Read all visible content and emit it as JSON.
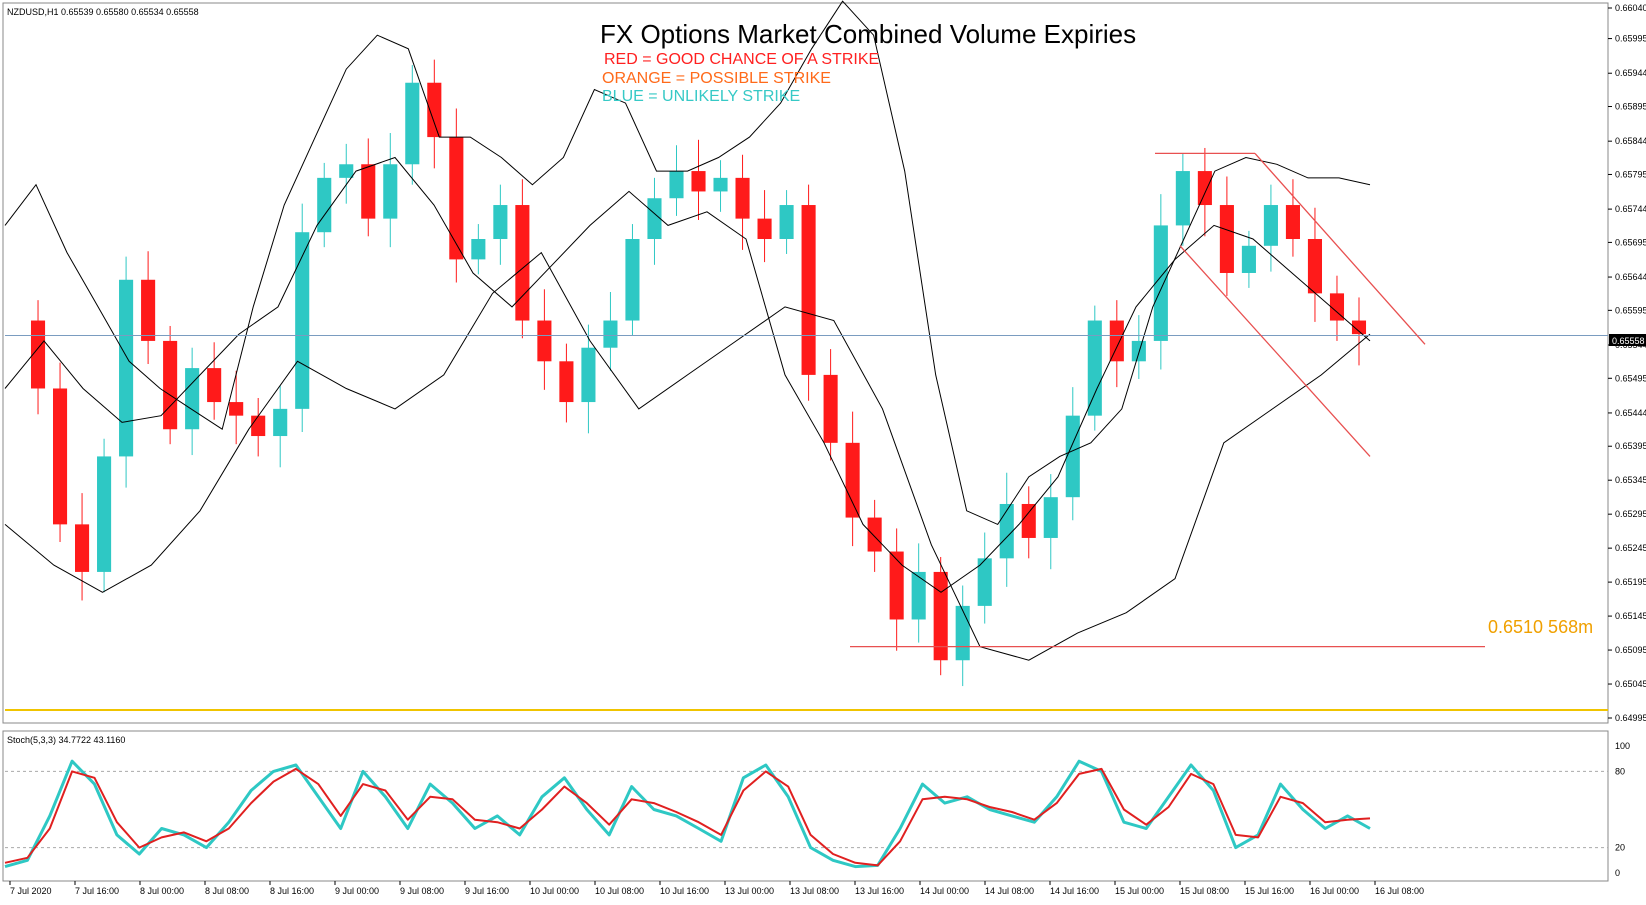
{
  "header": {
    "symbol_info": "NZDUSD,H1  0.65539 0.65580 0.65534 0.65558",
    "title": "FX Options Market Combined Volume Expiries",
    "legend": [
      {
        "text": "RED = GOOD CHANCE OF A STRIKE",
        "color": "#ff2020"
      },
      {
        "text": "ORANGE = POSSIBLE STRIKE",
        "color": "#ff6a1a"
      },
      {
        "text": "BLUE = UNLIKELY STRIKE",
        "color": "#36c9c6"
      }
    ]
  },
  "annotation": {
    "text": "0.6510 568m",
    "color": "#f0a000"
  },
  "price_label": "0.65558",
  "stoch_label": "Stoch(5,3,3) 34.7722 43.1160",
  "colors": {
    "bull": "#2ec8c4",
    "bear": "#ff1a1a",
    "band": "#000000",
    "line": "#e02020",
    "expiry": "#f0c400"
  },
  "chart_data": [
    {
      "type": "candlestick",
      "symbol": "NZDUSD",
      "timeframe": "H1",
      "ylim": [
        0.64995,
        0.6604
      ],
      "y_ticks": [
        "0.66040",
        "0.65995",
        "0.65944",
        "0.65895",
        "0.65844",
        "0.65795",
        "0.65744",
        "0.65695",
        "0.65644",
        "0.65595",
        "0.65544",
        "0.65495",
        "0.65444",
        "0.65395",
        "0.65345",
        "0.65295",
        "0.65245",
        "0.65195",
        "0.65145",
        "0.65095",
        "0.65045",
        "0.64995"
      ],
      "x_ticks": [
        "7 Jul 2020",
        "7 Jul 16:00",
        "8 Jul 00:00",
        "8 Jul 08:00",
        "8 Jul 16:00",
        "9 Jul 00:00",
        "9 Jul 08:00",
        "9 Jul 16:00",
        "10 Jul 00:00",
        "10 Jul 08:00",
        "10 Jul 16:00",
        "13 Jul 00:00",
        "13 Jul 08:00",
        "13 Jul 16:00",
        "14 Jul 00:00",
        "14 Jul 08:00",
        "14 Jul 16:00",
        "15 Jul 00:00",
        "15 Jul 08:00",
        "15 Jul 16:00",
        "16 Jul 00:00",
        "16 Jul 08:00"
      ],
      "current_price": 0.65558,
      "close_path": [
        0.6558,
        0.6548,
        0.6528,
        0.6521,
        0.6538,
        0.6564,
        0.6555,
        0.6542,
        0.6551,
        0.6546,
        0.6544,
        0.6541,
        0.6545,
        0.6571,
        0.6579,
        0.6581,
        0.6573,
        0.6581,
        0.6593,
        0.6585,
        0.6567,
        0.657,
        0.6575,
        0.6558,
        0.6552,
        0.6546,
        0.6554,
        0.6558,
        0.657,
        0.6576,
        0.658,
        0.6577,
        0.6579,
        0.6573,
        0.657,
        0.6575,
        0.655,
        0.654,
        0.6529,
        0.6524,
        0.6514,
        0.6521,
        0.6508,
        0.6516,
        0.6523,
        0.6531,
        0.6526,
        0.6532,
        0.6544,
        0.6558,
        0.6552,
        0.6555,
        0.6572,
        0.658,
        0.6575,
        0.6565,
        0.6569,
        0.6575,
        0.657,
        0.6562,
        0.6558,
        0.6556
      ],
      "bands_upper": [
        0.6572,
        0.6578,
        0.6568,
        0.656,
        0.6552,
        0.6548,
        0.6545,
        0.6542,
        0.656,
        0.6575,
        0.6585,
        0.6595,
        0.66,
        0.6598,
        0.6585,
        0.6585,
        0.6582,
        0.6578,
        0.6582,
        0.6592,
        0.659,
        0.658,
        0.658,
        0.6582,
        0.6585,
        0.659,
        0.6598,
        0.6605,
        0.66,
        0.658,
        0.655,
        0.653,
        0.6528,
        0.6535,
        0.6538,
        0.654,
        0.6545,
        0.656,
        0.657,
        0.658,
        0.6582,
        0.6581,
        0.6579,
        0.6579,
        0.6578
      ],
      "bands_middle": [
        0.6548,
        0.6555,
        0.6548,
        0.6543,
        0.6544,
        0.655,
        0.6556,
        0.656,
        0.6572,
        0.658,
        0.6582,
        0.6575,
        0.6565,
        0.656,
        0.6566,
        0.6572,
        0.6577,
        0.6572,
        0.6574,
        0.657,
        0.655,
        0.654,
        0.6528,
        0.6522,
        0.6518,
        0.6522,
        0.6528,
        0.6535,
        0.6548,
        0.656,
        0.6567,
        0.6572,
        0.657,
        0.6565,
        0.656,
        0.6555
      ],
      "bands_lower": [
        0.6528,
        0.6522,
        0.6518,
        0.6522,
        0.653,
        0.6542,
        0.6552,
        0.6548,
        0.6545,
        0.655,
        0.6562,
        0.6568,
        0.6555,
        0.6545,
        0.655,
        0.6555,
        0.656,
        0.6558,
        0.6545,
        0.6525,
        0.651,
        0.6508,
        0.6512,
        0.6515,
        0.652,
        0.654,
        0.6545,
        0.655,
        0.6556
      ],
      "options_expiry": {
        "level": 0.651,
        "amount": "568m",
        "label": "0.6510 568m"
      },
      "resistance_level": 0.65826
    },
    {
      "type": "line",
      "name": "Stoch(5,3,3)",
      "ylim": [
        0,
        100
      ],
      "levels": [
        20,
        80
      ],
      "y_ticks": [
        "100",
        "80",
        "20",
        "0"
      ],
      "series": [
        {
          "values": [
            5,
            10,
            45,
            88,
            70,
            30,
            15,
            35,
            30,
            20,
            40,
            65,
            80,
            85,
            60,
            35,
            80,
            60,
            35,
            70,
            55,
            35,
            45,
            30,
            60,
            75,
            50,
            30,
            68,
            50,
            45,
            35,
            25,
            75,
            85,
            60,
            20,
            10,
            5,
            6,
            35,
            70,
            55,
            60,
            50,
            45,
            40,
            60,
            88,
            80,
            40,
            35,
            60,
            85,
            65,
            20,
            30,
            70,
            50,
            35,
            45,
            35
          ]
        },
        {
          "values": [
            8,
            12,
            35,
            80,
            75,
            40,
            20,
            28,
            32,
            25,
            35,
            55,
            72,
            82,
            70,
            45,
            70,
            65,
            42,
            60,
            58,
            42,
            40,
            35,
            50,
            68,
            55,
            38,
            58,
            55,
            48,
            40,
            30,
            65,
            80,
            68,
            30,
            15,
            8,
            6,
            25,
            58,
            60,
            58,
            52,
            48,
            42,
            55,
            78,
            82,
            50,
            38,
            52,
            78,
            70,
            30,
            28,
            60,
            55,
            40,
            42,
            43
          ]
        }
      ]
    }
  ]
}
